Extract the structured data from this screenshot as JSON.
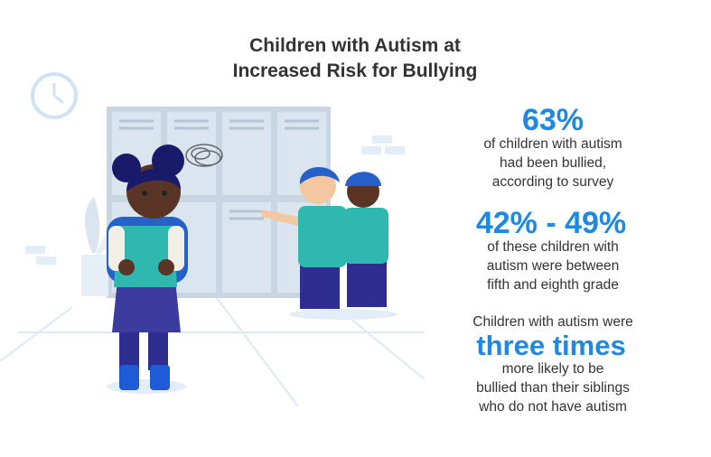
{
  "header": {
    "title_lines": [
      "Children with Autism at",
      "Increased Risk for Bullying"
    ]
  },
  "stats": [
    {
      "highlight": "63%",
      "lines": [
        "of children with autism",
        "had been bullied,",
        "according to survey"
      ]
    },
    {
      "highlight": "42% - 49%",
      "lines": [
        "of these children with",
        "autism were between",
        "fifth and eighth grade"
      ]
    },
    {
      "intro": "Children with autism were",
      "highlight": "three times",
      "lines": [
        "more likely to be",
        "bullied than their siblings",
        "who do not have autism"
      ]
    }
  ]
}
